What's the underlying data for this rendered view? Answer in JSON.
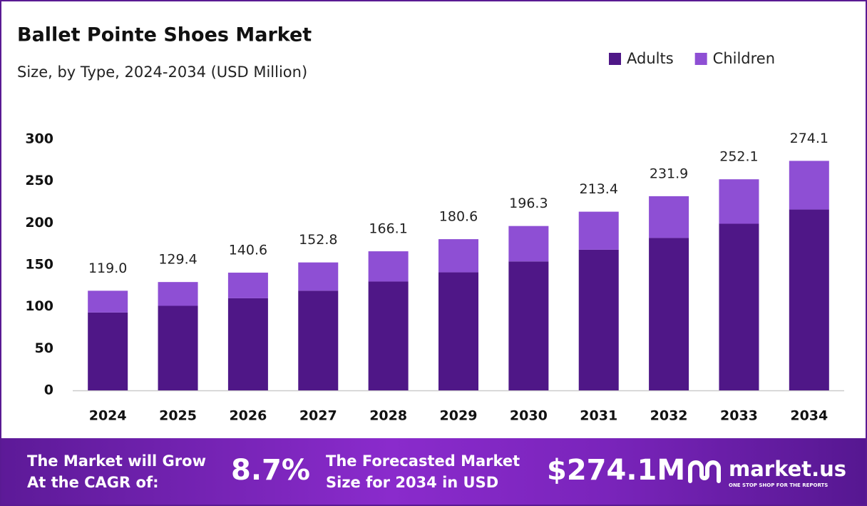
{
  "chart_data": {
    "type": "stacked_bar",
    "title": "Ballet Pointe Shoes Market",
    "subtitle": "Size, by Type, 2024-2034 (USD Million)",
    "categories": [
      "2024",
      "2025",
      "2026",
      "2027",
      "2028",
      "2029",
      "2030",
      "2031",
      "2032",
      "2033",
      "2034"
    ],
    "series": [
      {
        "name": "Adults",
        "color": "#4f1787",
        "values": [
          93,
          101,
          110,
          119,
          130,
          141,
          154,
          168,
          182,
          199,
          216
        ]
      },
      {
        "name": "Children",
        "color": "#8e4fd4",
        "values": [
          26,
          28.4,
          30.6,
          33.8,
          36.1,
          39.6,
          42.3,
          45.4,
          49.9,
          53.1,
          58.1
        ]
      }
    ],
    "totals": [
      119.0,
      129.4,
      140.6,
      152.8,
      166.1,
      180.6,
      196.3,
      213.4,
      231.9,
      252.1,
      274.1
    ],
    "total_labels": [
      "119.0",
      "129.4",
      "140.6",
      "152.8",
      "166.1",
      "180.6",
      "196.3",
      "213.4",
      "231.9",
      "252.1",
      "274.1"
    ],
    "ylim": [
      0,
      300
    ],
    "yticks": [
      0,
      50,
      100,
      150,
      200,
      250,
      300
    ],
    "grid": false,
    "legend": "top-right"
  },
  "footer": {
    "cagr_line1": "The Market will Grow",
    "cagr_line2": "At the CAGR of:",
    "cagr_value": "8.7%",
    "size_line1": "The Forecasted Market",
    "size_line2": "Size for 2034 in USD",
    "size_value": "$274.1M",
    "brand": "market.us",
    "tagline": "ONE STOP SHOP FOR THE REPORTS"
  }
}
